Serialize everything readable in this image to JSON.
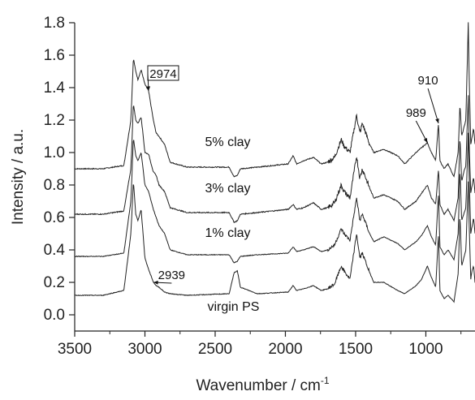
{
  "chart_data": {
    "type": "line",
    "title": "",
    "xlabel": "Wavenumber / cm",
    "xlabel_sup": "-1",
    "ylabel": "Intensity / a.u.",
    "xlim": [
      3500,
      650
    ],
    "ylim": [
      -0.1,
      1.8
    ],
    "x_reversed": true,
    "grid": false,
    "x_ticks": [
      3500,
      3000,
      2500,
      2000,
      1500,
      1000
    ],
    "x_tick_labels": [
      "3500",
      "3000",
      "2500",
      "2000",
      "1500",
      "1000"
    ],
    "y_ticks": [
      0.0,
      0.2,
      0.4,
      0.6,
      0.8,
      1.0,
      1.2,
      1.4,
      1.6,
      1.8
    ],
    "y_tick_labels": [
      "0.0",
      "0.2",
      "0.4",
      "0.6",
      "0.8",
      "1.0",
      "1.2",
      "1.4",
      "1.6",
      "1.8"
    ],
    "series": [
      {
        "name": "5% clay",
        "color": "#222222",
        "noise": 0.006,
        "points": [
          [
            3500,
            0.9
          ],
          [
            3300,
            0.9
          ],
          [
            3150,
            0.92
          ],
          [
            3100,
            1.2
          ],
          [
            3082,
            1.58
          ],
          [
            3065,
            1.5
          ],
          [
            3050,
            1.45
          ],
          [
            3027,
            1.51
          ],
          [
            3000,
            1.42
          ],
          [
            2974,
            1.38
          ],
          [
            2940,
            1.2
          ],
          [
            2920,
            1.12
          ],
          [
            2900,
            1.1
          ],
          [
            2860,
            1.05
          ],
          [
            2820,
            0.94
          ],
          [
            2700,
            0.91
          ],
          [
            2400,
            0.91
          ],
          [
            2365,
            0.85
          ],
          [
            2342,
            0.86
          ],
          [
            2320,
            0.9
          ],
          [
            2200,
            0.91
          ],
          [
            1980,
            0.93
          ],
          [
            1945,
            0.98
          ],
          [
            1920,
            0.93
          ],
          [
            1870,
            0.95
          ],
          [
            1800,
            0.97
          ],
          [
            1745,
            0.93
          ],
          [
            1700,
            0.94
          ],
          [
            1650,
            0.97
          ],
          [
            1602,
            1.08
          ],
          [
            1583,
            1.04
          ],
          [
            1540,
            1.0
          ],
          [
            1493,
            1.23
          ],
          [
            1470,
            1.12
          ],
          [
            1452,
            1.18
          ],
          [
            1400,
            1.05
          ],
          [
            1370,
            1.0
          ],
          [
            1300,
            1.02
          ],
          [
            1200,
            0.98
          ],
          [
            1150,
            0.93
          ],
          [
            1070,
            1.0
          ],
          [
            1030,
            1.03
          ],
          [
            989,
            1.06
          ],
          [
            960,
            1.0
          ],
          [
            930,
            0.95
          ],
          [
            910,
            1.18
          ],
          [
            900,
            0.95
          ],
          [
            870,
            0.9
          ],
          [
            842,
            0.93
          ],
          [
            800,
            0.85
          ],
          [
            770,
            1.0
          ],
          [
            757,
            1.3
          ],
          [
            745,
            1.1
          ],
          [
            730,
            1.15
          ],
          [
            715,
            1.2
          ],
          [
            698,
            1.8
          ],
          [
            690,
            1.4
          ],
          [
            680,
            1.05
          ],
          [
            670,
            1.1
          ],
          [
            660,
            1.15
          ],
          [
            650,
            1.05
          ]
        ]
      },
      {
        "name": "3% clay",
        "color": "#222222",
        "noise": 0.006,
        "points": [
          [
            3500,
            0.62
          ],
          [
            3300,
            0.62
          ],
          [
            3150,
            0.64
          ],
          [
            3100,
            0.9
          ],
          [
            3082,
            1.3
          ],
          [
            3065,
            1.2
          ],
          [
            3050,
            1.18
          ],
          [
            3027,
            1.22
          ],
          [
            3000,
            1.0
          ],
          [
            2974,
            0.99
          ],
          [
            2940,
            0.88
          ],
          [
            2920,
            0.86
          ],
          [
            2900,
            0.8
          ],
          [
            2860,
            0.76
          ],
          [
            2820,
            0.66
          ],
          [
            2700,
            0.63
          ],
          [
            2400,
            0.63
          ],
          [
            2365,
            0.57
          ],
          [
            2342,
            0.58
          ],
          [
            2320,
            0.62
          ],
          [
            2200,
            0.63
          ],
          [
            1980,
            0.65
          ],
          [
            1945,
            0.68
          ],
          [
            1920,
            0.65
          ],
          [
            1870,
            0.66
          ],
          [
            1800,
            0.69
          ],
          [
            1745,
            0.65
          ],
          [
            1700,
            0.66
          ],
          [
            1650,
            0.69
          ],
          [
            1602,
            0.8
          ],
          [
            1583,
            0.76
          ],
          [
            1540,
            0.72
          ],
          [
            1493,
            0.98
          ],
          [
            1470,
            0.84
          ],
          [
            1452,
            0.9
          ],
          [
            1400,
            0.78
          ],
          [
            1370,
            0.72
          ],
          [
            1300,
            0.74
          ],
          [
            1200,
            0.7
          ],
          [
            1150,
            0.65
          ],
          [
            1070,
            0.7
          ],
          [
            1030,
            0.75
          ],
          [
            989,
            0.8
          ],
          [
            960,
            0.72
          ],
          [
            930,
            0.68
          ],
          [
            910,
            0.9
          ],
          [
            900,
            0.68
          ],
          [
            870,
            0.62
          ],
          [
            842,
            0.65
          ],
          [
            800,
            0.58
          ],
          [
            770,
            0.72
          ],
          [
            757,
            1.1
          ],
          [
            745,
            0.82
          ],
          [
            730,
            0.88
          ],
          [
            715,
            0.92
          ],
          [
            698,
            1.35
          ],
          [
            690,
            1.0
          ],
          [
            680,
            0.75
          ],
          [
            670,
            0.8
          ],
          [
            660,
            0.85
          ],
          [
            650,
            0.75
          ]
        ]
      },
      {
        "name": "1% clay",
        "color": "#222222",
        "noise": 0.004,
        "points": [
          [
            3500,
            0.36
          ],
          [
            3300,
            0.36
          ],
          [
            3150,
            0.38
          ],
          [
            3100,
            0.7
          ],
          [
            3082,
            1.09
          ],
          [
            3065,
            0.98
          ],
          [
            3050,
            0.95
          ],
          [
            3027,
            1.0
          ],
          [
            3000,
            0.8
          ],
          [
            2974,
            0.76
          ],
          [
            2940,
            0.65
          ],
          [
            2920,
            0.6
          ],
          [
            2900,
            0.55
          ],
          [
            2860,
            0.5
          ],
          [
            2820,
            0.4
          ],
          [
            2700,
            0.37
          ],
          [
            2400,
            0.37
          ],
          [
            2365,
            0.32
          ],
          [
            2342,
            0.33
          ],
          [
            2320,
            0.36
          ],
          [
            2200,
            0.37
          ],
          [
            1980,
            0.38
          ],
          [
            1945,
            0.42
          ],
          [
            1920,
            0.39
          ],
          [
            1870,
            0.4
          ],
          [
            1800,
            0.42
          ],
          [
            1745,
            0.39
          ],
          [
            1700,
            0.4
          ],
          [
            1650,
            0.43
          ],
          [
            1602,
            0.53
          ],
          [
            1583,
            0.5
          ],
          [
            1540,
            0.46
          ],
          [
            1493,
            0.72
          ],
          [
            1470,
            0.58
          ],
          [
            1452,
            0.62
          ],
          [
            1400,
            0.5
          ],
          [
            1370,
            0.45
          ],
          [
            1300,
            0.48
          ],
          [
            1200,
            0.44
          ],
          [
            1150,
            0.4
          ],
          [
            1070,
            0.45
          ],
          [
            1030,
            0.49
          ],
          [
            989,
            0.55
          ],
          [
            960,
            0.48
          ],
          [
            930,
            0.43
          ],
          [
            910,
            0.75
          ],
          [
            900,
            0.42
          ],
          [
            870,
            0.37
          ],
          [
            842,
            0.4
          ],
          [
            800,
            0.34
          ],
          [
            770,
            0.5
          ],
          [
            757,
            0.9
          ],
          [
            745,
            0.58
          ],
          [
            730,
            0.62
          ],
          [
            715,
            0.66
          ],
          [
            698,
            1.12
          ],
          [
            690,
            0.8
          ],
          [
            680,
            0.5
          ],
          [
            670,
            0.55
          ],
          [
            660,
            0.6
          ],
          [
            650,
            0.5
          ]
        ]
      },
      {
        "name": "virgin PS",
        "color": "#222222",
        "noise": 0.004,
        "points": [
          [
            3500,
            0.12
          ],
          [
            3300,
            0.12
          ],
          [
            3150,
            0.15
          ],
          [
            3100,
            0.5
          ],
          [
            3082,
            0.82
          ],
          [
            3065,
            0.62
          ],
          [
            3050,
            0.58
          ],
          [
            3027,
            0.65
          ],
          [
            3000,
            0.35
          ],
          [
            2974,
            0.28
          ],
          [
            2939,
            0.2
          ],
          [
            2920,
            0.18
          ],
          [
            2900,
            0.17
          ],
          [
            2860,
            0.14
          ],
          [
            2820,
            0.13
          ],
          [
            2700,
            0.12
          ],
          [
            2400,
            0.13
          ],
          [
            2365,
            0.26
          ],
          [
            2342,
            0.27
          ],
          [
            2320,
            0.17
          ],
          [
            2200,
            0.13
          ],
          [
            1980,
            0.14
          ],
          [
            1945,
            0.18
          ],
          [
            1920,
            0.15
          ],
          [
            1870,
            0.16
          ],
          [
            1800,
            0.18
          ],
          [
            1745,
            0.15
          ],
          [
            1700,
            0.16
          ],
          [
            1650,
            0.19
          ],
          [
            1602,
            0.3
          ],
          [
            1583,
            0.27
          ],
          [
            1540,
            0.22
          ],
          [
            1493,
            0.5
          ],
          [
            1470,
            0.35
          ],
          [
            1452,
            0.38
          ],
          [
            1400,
            0.26
          ],
          [
            1370,
            0.2
          ],
          [
            1300,
            0.2
          ],
          [
            1200,
            0.15
          ],
          [
            1150,
            0.13
          ],
          [
            1070,
            0.18
          ],
          [
            1030,
            0.22
          ],
          [
            989,
            0.3
          ],
          [
            960,
            0.23
          ],
          [
            930,
            0.17
          ],
          [
            910,
            0.5
          ],
          [
            900,
            0.15
          ],
          [
            870,
            0.1
          ],
          [
            842,
            0.12
          ],
          [
            800,
            0.08
          ],
          [
            770,
            0.25
          ],
          [
            757,
            0.62
          ],
          [
            745,
            0.3
          ],
          [
            730,
            0.35
          ],
          [
            715,
            0.4
          ],
          [
            698,
            0.82
          ],
          [
            690,
            0.5
          ],
          [
            680,
            0.22
          ],
          [
            670,
            0.28
          ],
          [
            660,
            0.3
          ],
          [
            650,
            0.2
          ]
        ]
      }
    ],
    "annotations": [
      {
        "text": "2974",
        "boxed": true,
        "x": 2974,
        "y": 1.38,
        "label_x": 2870,
        "label_y": 1.485
      },
      {
        "text": "2939",
        "boxed": false,
        "x": 2939,
        "y": 0.2,
        "label_x": 2810,
        "label_y": 0.245
      },
      {
        "text": "910",
        "boxed": false,
        "x": 910,
        "y": 1.18,
        "label_x": 985,
        "label_y": 1.445
      },
      {
        "text": "989",
        "boxed": false,
        "x": 989,
        "y": 1.06,
        "label_x": 1070,
        "label_y": 1.245
      }
    ],
    "series_labels": [
      {
        "text": "5% clay",
        "x": 2410,
        "y": 1.04
      },
      {
        "text": "3% clay",
        "x": 2410,
        "y": 0.755
      },
      {
        "text": "1% clay",
        "x": 2410,
        "y": 0.48
      },
      {
        "text": "virgin PS",
        "x": 2370,
        "y": 0.025
      }
    ]
  }
}
